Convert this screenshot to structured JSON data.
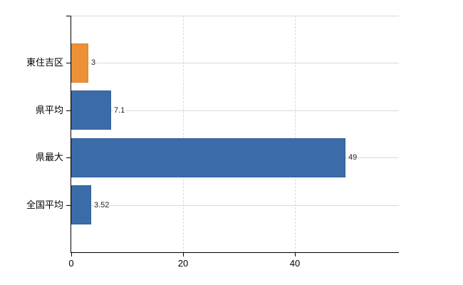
{
  "page": {
    "background": "#ffffff"
  },
  "chart_data": {
    "type": "bar",
    "orientation": "horizontal",
    "title": "",
    "xlabel": "",
    "ylabel": "",
    "legend": "none",
    "categories": [
      "東住吉区",
      "県平均",
      "県最大",
      "全国平均"
    ],
    "values": [
      3,
      7.1,
      49,
      3.52
    ],
    "value_labels": [
      "3",
      "7.1",
      "49",
      "3.52"
    ],
    "bar_colors": [
      "#ec9138",
      "#3c6ca8",
      "#3c6ca8",
      "#3c6ca8"
    ],
    "bar_border_colors": [
      "#d97f26",
      "#2f5d99",
      "#2f5d99",
      "#2f5d99"
    ],
    "xlim": [
      0,
      58.6
    ],
    "xticks": [
      0,
      20,
      40
    ],
    "xtick_labels": [
      "0",
      "20",
      "40"
    ],
    "grid": {
      "vertical_style": "dashed",
      "horizontal_style": "solid",
      "color": "#d9d9d9"
    },
    "axis_color": "#000000",
    "tick_label_color": "#000000",
    "category_label_color": "#000000",
    "value_label_color": "#222222"
  }
}
